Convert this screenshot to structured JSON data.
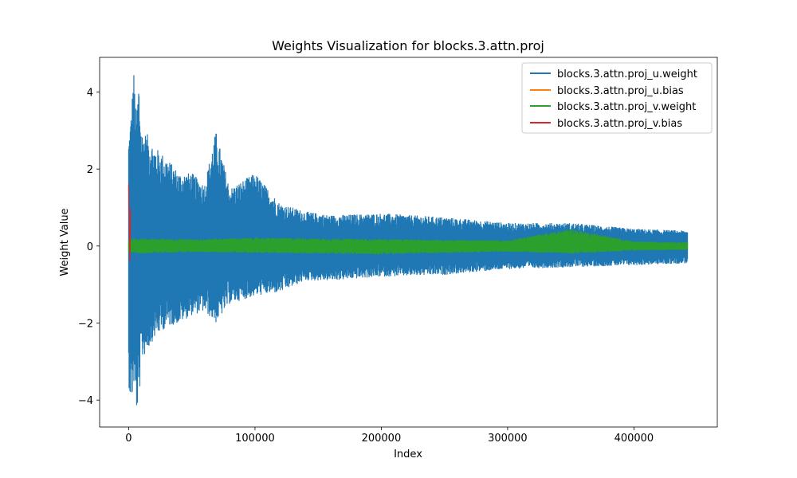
{
  "chart_data": {
    "type": "line",
    "title": "Weights Visualization for blocks.3.attn.proj",
    "xlabel": "Index",
    "ylabel": "Weight Value",
    "xlim": [
      -23000,
      466000
    ],
    "ylim": [
      -4.7,
      4.9
    ],
    "xticks": [
      0,
      100000,
      200000,
      300000,
      400000
    ],
    "xtick_labels": [
      "0",
      "100000",
      "200000",
      "300000",
      "400000"
    ],
    "yticks": [
      -4,
      -2,
      0,
      2,
      4
    ],
    "ytick_labels": [
      "−4",
      "−2",
      "0",
      "2",
      "4"
    ],
    "grid": false,
    "legend_position": "top-right",
    "series": [
      {
        "name": "blocks.3.attn.proj_u.weight",
        "color": "#1f77b4",
        "x_range": [
          0,
          442368
        ],
        "envelope": {
          "x": [
            0,
            2000,
            4000,
            6000,
            8000,
            10000,
            15000,
            20000,
            30000,
            40000,
            50000,
            60000,
            69000,
            80000,
            100000,
            120000,
            140000,
            160000,
            200000,
            250000,
            300000,
            350000,
            400000,
            442368
          ],
          "upper": [
            2.8,
            3.5,
            4.6,
            3.4,
            4.4,
            3.0,
            2.9,
            2.6,
            2.3,
            1.9,
            1.9,
            1.6,
            3.0,
            1.5,
            1.9,
            1.1,
            0.9,
            0.8,
            0.85,
            0.75,
            0.6,
            0.6,
            0.45,
            0.4
          ],
          "lower": [
            -3.6,
            -4.2,
            -3.6,
            -4.3,
            -4.2,
            -3.0,
            -2.7,
            -2.4,
            -2.1,
            -2.0,
            -1.8,
            -1.7,
            -2.0,
            -1.5,
            -1.3,
            -1.2,
            -0.9,
            -0.9,
            -0.8,
            -0.75,
            -0.6,
            -0.55,
            -0.5,
            -0.45
          ]
        }
      },
      {
        "name": "blocks.3.attn.proj_u.bias",
        "color": "#ff7f0e",
        "x_range": [
          0,
          384
        ],
        "envelope": {
          "x": [
            0,
            384
          ],
          "upper": [
            0.05,
            0.05
          ],
          "lower": [
            -0.05,
            -0.05
          ]
        }
      },
      {
        "name": "blocks.3.attn.proj_v.weight",
        "color": "#2ca02c",
        "x_range": [
          0,
          442368
        ],
        "envelope": {
          "x": [
            0,
            5000,
            50000,
            100000,
            200000,
            300000,
            350000,
            400000,
            442368
          ],
          "upper": [
            0.18,
            0.2,
            0.18,
            0.22,
            0.18,
            0.15,
            0.45,
            0.12,
            0.1
          ],
          "lower": [
            -0.18,
            -0.2,
            -0.16,
            -0.18,
            -0.22,
            -0.15,
            -0.2,
            -0.12,
            -0.1
          ]
        }
      },
      {
        "name": "blocks.3.attn.proj_v.bias",
        "color": "#d62728",
        "x_range": [
          0,
          1152
        ],
        "envelope": {
          "x": [
            0,
            1152
          ],
          "upper": [
            1.6,
            1.6
          ],
          "lower": [
            -0.4,
            -0.4
          ]
        }
      }
    ]
  }
}
